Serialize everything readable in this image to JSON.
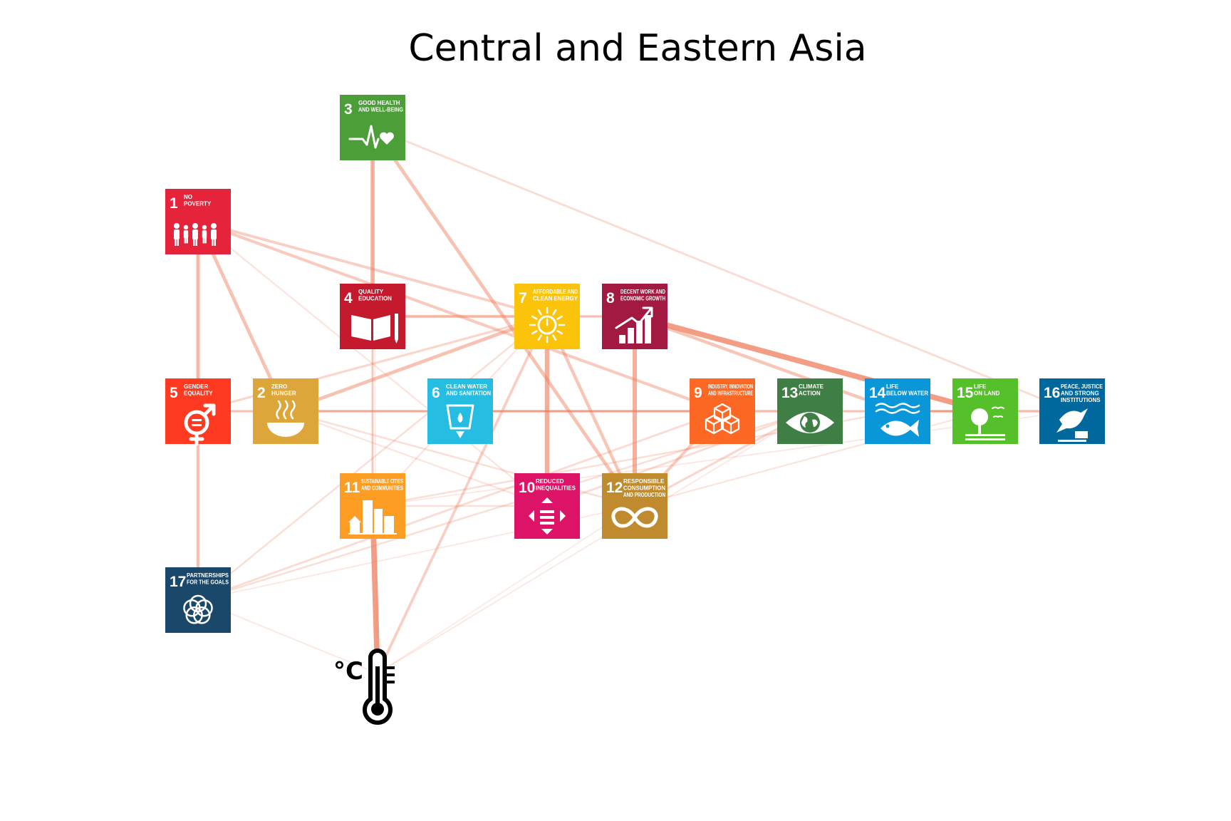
{
  "title": "Central and Eastern Asia",
  "thermometer": {
    "label": "°C",
    "icon": "thermometer-icon"
  },
  "edge_color": "#f08060",
  "goals": [
    {
      "id": 1,
      "lines": [
        "NO",
        "POVERTY"
      ],
      "color": "#e5243b",
      "icon": "family-icon"
    },
    {
      "id": 2,
      "lines": [
        "ZERO",
        "HUNGER"
      ],
      "color": "#dda63a",
      "icon": "bowl-icon"
    },
    {
      "id": 3,
      "lines": [
        "GOOD HEALTH",
        "AND WELL-BEING"
      ],
      "color": "#4c9f38",
      "icon": "heartbeat-icon"
    },
    {
      "id": 4,
      "lines": [
        "QUALITY",
        "EDUCATION"
      ],
      "color": "#c5192d",
      "icon": "book-icon"
    },
    {
      "id": 5,
      "lines": [
        "GENDER",
        "EQUALITY"
      ],
      "color": "#ff3a21",
      "icon": "gender-icon"
    },
    {
      "id": 6,
      "lines": [
        "CLEAN WATER",
        "AND SANITATION"
      ],
      "color": "#26bde2",
      "icon": "water-icon"
    },
    {
      "id": 7,
      "lines": [
        "AFFORDABLE AND",
        "CLEAN ENERGY"
      ],
      "color": "#fcc30b",
      "icon": "sun-icon"
    },
    {
      "id": 8,
      "lines": [
        "DECENT WORK AND",
        "ECONOMIC GROWTH"
      ],
      "color": "#a21942",
      "icon": "growth-chart-icon"
    },
    {
      "id": 9,
      "lines": [
        "INDUSTRY, INNOVATION",
        "AND INFRASTRUCTURE"
      ],
      "color": "#fd6925",
      "icon": "cubes-icon"
    },
    {
      "id": 10,
      "lines": [
        "REDUCED",
        "INEQUALITIES"
      ],
      "color": "#dd1367",
      "icon": "equality-icon"
    },
    {
      "id": 11,
      "lines": [
        "SUSTAINABLE CITIES",
        "AND COMMUNITIES"
      ],
      "color": "#fd9d24",
      "icon": "city-icon"
    },
    {
      "id": 12,
      "lines": [
        "RESPONSIBLE",
        "CONSUMPTION",
        "AND PRODUCTION"
      ],
      "color": "#bf8b2e",
      "icon": "infinity-icon"
    },
    {
      "id": 13,
      "lines": [
        "CLIMATE",
        "ACTION"
      ],
      "color": "#3f7e44",
      "icon": "eye-globe-icon"
    },
    {
      "id": 14,
      "lines": [
        "LIFE",
        "BELOW WATER"
      ],
      "color": "#0a97d9",
      "icon": "fish-icon"
    },
    {
      "id": 15,
      "lines": [
        "LIFE",
        "ON LAND"
      ],
      "color": "#56c02b",
      "icon": "tree-icon"
    },
    {
      "id": 16,
      "lines": [
        "PEACE, JUSTICE",
        "AND STRONG",
        "INSTITUTIONS"
      ],
      "color": "#00689d",
      "icon": "dove-icon"
    },
    {
      "id": 17,
      "lines": [
        "PARTNERSHIPS",
        "FOR THE GOALS"
      ],
      "color": "#19486a",
      "icon": "rings-icon"
    }
  ],
  "edges": [
    [
      "3",
      "4",
      0.7
    ],
    [
      "3",
      "12",
      0.55
    ],
    [
      "3",
      "16",
      0.25
    ],
    [
      "3",
      "11",
      0.1
    ],
    [
      "1",
      "5",
      0.6
    ],
    [
      "1",
      "2",
      0.55
    ],
    [
      "1",
      "7",
      0.4
    ],
    [
      "1",
      "9",
      0.45
    ],
    [
      "1",
      "10",
      0.15
    ],
    [
      "4",
      "7",
      0.45
    ],
    [
      "4",
      "11",
      0.3
    ],
    [
      "4",
      "8",
      0.25
    ],
    [
      "7",
      "10",
      0.8
    ],
    [
      "7",
      "12",
      0.5
    ],
    [
      "7",
      "2",
      0.55
    ],
    [
      "7",
      "T",
      0.4
    ],
    [
      "7",
      "17",
      0.2
    ],
    [
      "7",
      "8",
      0.3
    ],
    [
      "7",
      "11",
      0.15
    ],
    [
      "8",
      "12",
      0.75
    ],
    [
      "8",
      "15",
      1.0
    ],
    [
      "8",
      "14",
      0.5
    ],
    [
      "5",
      "17",
      0.5
    ],
    [
      "5",
      "7",
      0.3
    ],
    [
      "5",
      "13",
      0.3
    ],
    [
      "2",
      "16",
      0.3
    ],
    [
      "2",
      "12",
      0.2
    ],
    [
      "2",
      "10",
      0.15
    ],
    [
      "11",
      "T",
      1.0
    ],
    [
      "11",
      "14",
      0.2
    ],
    [
      "11",
      "10",
      0.2
    ],
    [
      "11",
      "16",
      0.1
    ],
    [
      "12",
      "9",
      0.45
    ],
    [
      "12",
      "13",
      0.3
    ],
    [
      "10",
      "13",
      0.25
    ],
    [
      "12",
      "15",
      0.15
    ],
    [
      "17",
      "9",
      0.25
    ],
    [
      "17",
      "13",
      0.2
    ],
    [
      "17",
      "T",
      0.1
    ],
    [
      "17",
      "12",
      0.1
    ],
    [
      "14",
      "16",
      0.3
    ],
    [
      "6",
      "9",
      0.25
    ],
    [
      "5",
      "9",
      0.2
    ],
    [
      "13",
      "15",
      0.2
    ],
    [
      "14",
      "15",
      0.3
    ],
    [
      "T",
      "13",
      0.1
    ],
    [
      "T",
      "12",
      0.08
    ],
    [
      "1",
      "17",
      0.05
    ],
    [
      "3",
      "T",
      0.06
    ]
  ]
}
